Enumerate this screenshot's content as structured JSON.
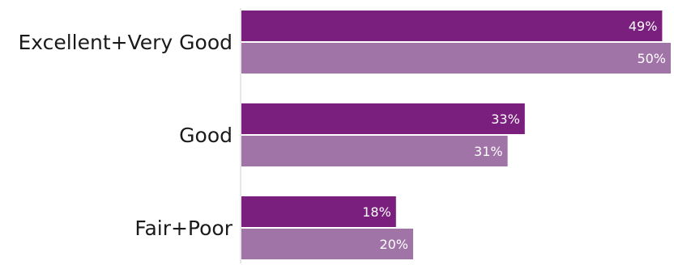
{
  "chart_data": {
    "type": "bar",
    "orientation": "horizontal",
    "categories": [
      "Excellent+Very Good",
      "Good",
      "Fair+Poor"
    ],
    "series": [
      {
        "values": [
          49,
          33,
          18
        ],
        "color": "#7a1f7e"
      },
      {
        "values": [
          50,
          31,
          20
        ],
        "color": "#a174a8"
      }
    ],
    "value_labels": [
      [
        "49%",
        "33%",
        "18%"
      ],
      [
        "50%",
        "31%",
        "20%"
      ]
    ],
    "xlim": [
      0,
      50
    ],
    "title": "",
    "xlabel": "",
    "ylabel": "",
    "grid": false,
    "legend": "none"
  }
}
